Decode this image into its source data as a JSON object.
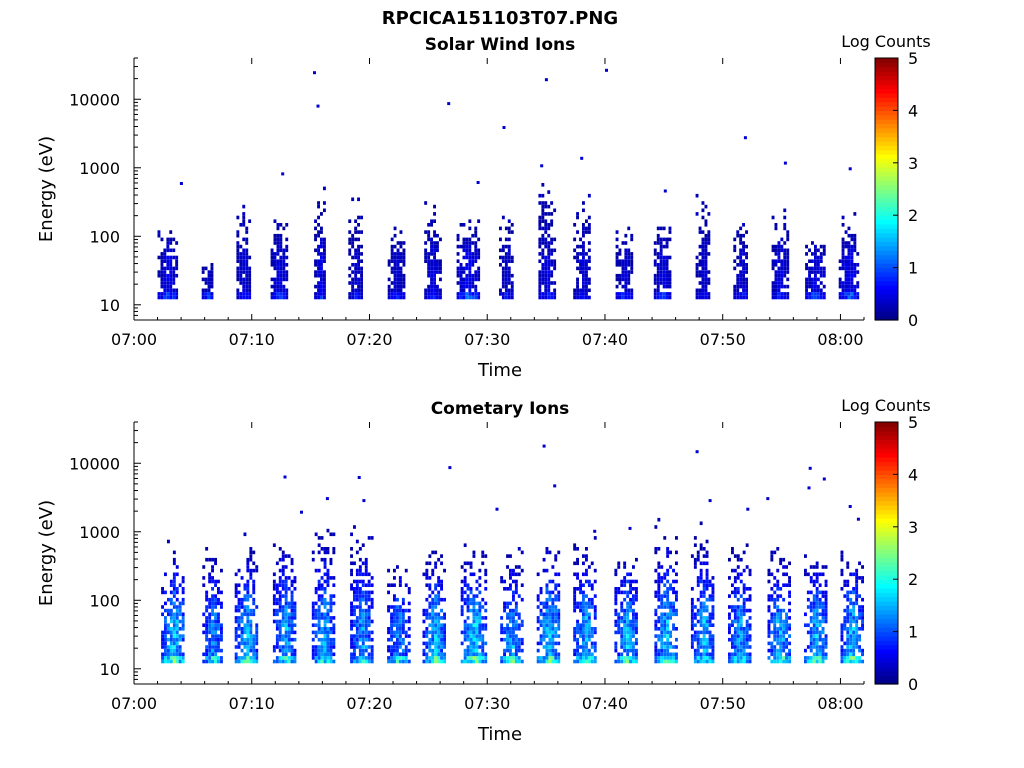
{
  "figure": {
    "title": "RPCICA151103T07.PNG"
  },
  "chart_data": [
    {
      "type": "heatmap",
      "title": "Solar Wind Ions",
      "xlabel": "Time",
      "ylabel": "Energy (eV)",
      "yscale": "log",
      "ylim": [
        6,
        40000
      ],
      "xlim": [
        "07:00",
        "08:02"
      ],
      "xticks": [
        "07:00",
        "07:10",
        "07:20",
        "07:30",
        "07:40",
        "07:50",
        "08:00"
      ],
      "yticks": [
        "10",
        "100",
        "1000",
        "10000"
      ],
      "colorbar": {
        "label": "Log Counts",
        "range": [
          0,
          5
        ],
        "ticks": [
          "0",
          "1",
          "2",
          "3",
          "4",
          "5"
        ],
        "colormap": "jet"
      },
      "grid": false,
      "bursts": [
        {
          "t": 2.8,
          "max": 0.6,
          "top": 130,
          "width": 1.6
        },
        {
          "t": 6.2,
          "max": 0.4,
          "top": 40,
          "width": 0.9
        },
        {
          "t": 9.3,
          "max": 0.5,
          "top": 300,
          "width": 1.2
        },
        {
          "t": 12.3,
          "max": 0.6,
          "top": 200,
          "width": 1.4
        },
        {
          "t": 15.8,
          "max": 0.6,
          "top": 400,
          "width": 1.0
        },
        {
          "t": 18.8,
          "max": 0.5,
          "top": 300,
          "width": 1.2
        },
        {
          "t": 22.2,
          "max": 0.5,
          "top": 120,
          "width": 1.3
        },
        {
          "t": 25.3,
          "max": 0.6,
          "top": 300,
          "width": 1.3
        },
        {
          "t": 28.3,
          "max": 0.7,
          "top": 150,
          "width": 1.8
        },
        {
          "t": 31.6,
          "max": 0.5,
          "top": 200,
          "width": 1.2
        },
        {
          "t": 35.0,
          "max": 0.6,
          "top": 500,
          "width": 1.3
        },
        {
          "t": 38.0,
          "max": 0.5,
          "top": 300,
          "width": 1.4
        },
        {
          "t": 41.6,
          "max": 0.5,
          "top": 120,
          "width": 1.4
        },
        {
          "t": 44.8,
          "max": 0.6,
          "top": 200,
          "width": 1.3
        },
        {
          "t": 48.3,
          "max": 0.5,
          "top": 400,
          "width": 1.2
        },
        {
          "t": 51.5,
          "max": 0.5,
          "top": 200,
          "width": 1.2
        },
        {
          "t": 54.8,
          "max": 0.6,
          "top": 300,
          "width": 1.3
        },
        {
          "t": 57.8,
          "max": 0.6,
          "top": 80,
          "width": 1.6
        },
        {
          "t": 60.7,
          "max": 0.7,
          "top": 150,
          "width": 1.7
        }
      ],
      "isolated_points": [
        [
          15.2,
          24000
        ],
        [
          15.5,
          7800
        ],
        [
          26.6,
          8500
        ],
        [
          31.3,
          3800
        ],
        [
          34.9,
          19000
        ],
        [
          40.0,
          26000
        ],
        [
          51.8,
          2700
        ],
        [
          37.9,
          1350
        ],
        [
          34.5,
          1050
        ],
        [
          12.5,
          800
        ],
        [
          3.9,
          580
        ],
        [
          60.7,
          950
        ],
        [
          55.2,
          1150
        ],
        [
          29.1,
          600
        ],
        [
          45.0,
          450
        ]
      ]
    },
    {
      "type": "heatmap",
      "title": "Cometary Ions",
      "xlabel": "Time",
      "ylabel": "Energy (eV)",
      "yscale": "log",
      "ylim": [
        6,
        40000
      ],
      "xlim": [
        "07:00",
        "08:02"
      ],
      "xticks": [
        "07:00",
        "07:10",
        "07:20",
        "07:30",
        "07:40",
        "07:50",
        "08:00"
      ],
      "yticks": [
        "10",
        "100",
        "1000",
        "10000"
      ],
      "colorbar": {
        "label": "Log Counts",
        "range": [
          0,
          5
        ],
        "ticks": [
          "0",
          "1",
          "2",
          "3",
          "4",
          "5"
        ],
        "colormap": "jet"
      },
      "grid": false,
      "bursts": [
        {
          "t": 3.3,
          "max": 1.9,
          "top": 600,
          "width": 2.0
        },
        {
          "t": 6.6,
          "max": 1.6,
          "top": 600,
          "width": 1.6
        },
        {
          "t": 9.5,
          "max": 1.8,
          "top": 700,
          "width": 1.9
        },
        {
          "t": 12.8,
          "max": 1.7,
          "top": 900,
          "width": 2.0
        },
        {
          "t": 16.0,
          "max": 1.8,
          "top": 1200,
          "width": 1.8
        },
        {
          "t": 19.3,
          "max": 1.7,
          "top": 1000,
          "width": 1.9
        },
        {
          "t": 22.4,
          "max": 1.6,
          "top": 400,
          "width": 1.8
        },
        {
          "t": 25.5,
          "max": 1.8,
          "top": 700,
          "width": 2.0
        },
        {
          "t": 28.8,
          "max": 2.0,
          "top": 600,
          "width": 2.1
        },
        {
          "t": 32.0,
          "max": 1.8,
          "top": 500,
          "width": 1.8
        },
        {
          "t": 35.2,
          "max": 1.9,
          "top": 900,
          "width": 2.0
        },
        {
          "t": 38.3,
          "max": 1.8,
          "top": 700,
          "width": 2.0
        },
        {
          "t": 41.8,
          "max": 1.8,
          "top": 600,
          "width": 2.0
        },
        {
          "t": 45.2,
          "max": 1.9,
          "top": 1200,
          "width": 2.0
        },
        {
          "t": 48.3,
          "max": 1.8,
          "top": 1000,
          "width": 2.0
        },
        {
          "t": 51.4,
          "max": 1.7,
          "top": 600,
          "width": 1.9
        },
        {
          "t": 54.8,
          "max": 1.8,
          "top": 600,
          "width": 2.0
        },
        {
          "t": 57.9,
          "max": 1.9,
          "top": 500,
          "width": 2.0
        },
        {
          "t": 60.9,
          "max": 1.9,
          "top": 600,
          "width": 1.8
        }
      ],
      "isolated_points": [
        [
          12.7,
          6200
        ],
        [
          16.3,
          3000
        ],
        [
          19.0,
          6100
        ],
        [
          19.4,
          2800
        ],
        [
          26.7,
          8500
        ],
        [
          30.7,
          2100
        ],
        [
          34.7,
          17500
        ],
        [
          35.6,
          4600
        ],
        [
          47.7,
          14500
        ],
        [
          48.8,
          2800
        ],
        [
          52.0,
          2100
        ],
        [
          53.7,
          3000
        ],
        [
          57.3,
          8300
        ],
        [
          57.2,
          4300
        ],
        [
          58.5,
          5800
        ],
        [
          60.7,
          2300
        ],
        [
          61.4,
          1500
        ],
        [
          14.1,
          1900
        ],
        [
          39.0,
          1000
        ],
        [
          42.0,
          1100
        ]
      ]
    }
  ]
}
